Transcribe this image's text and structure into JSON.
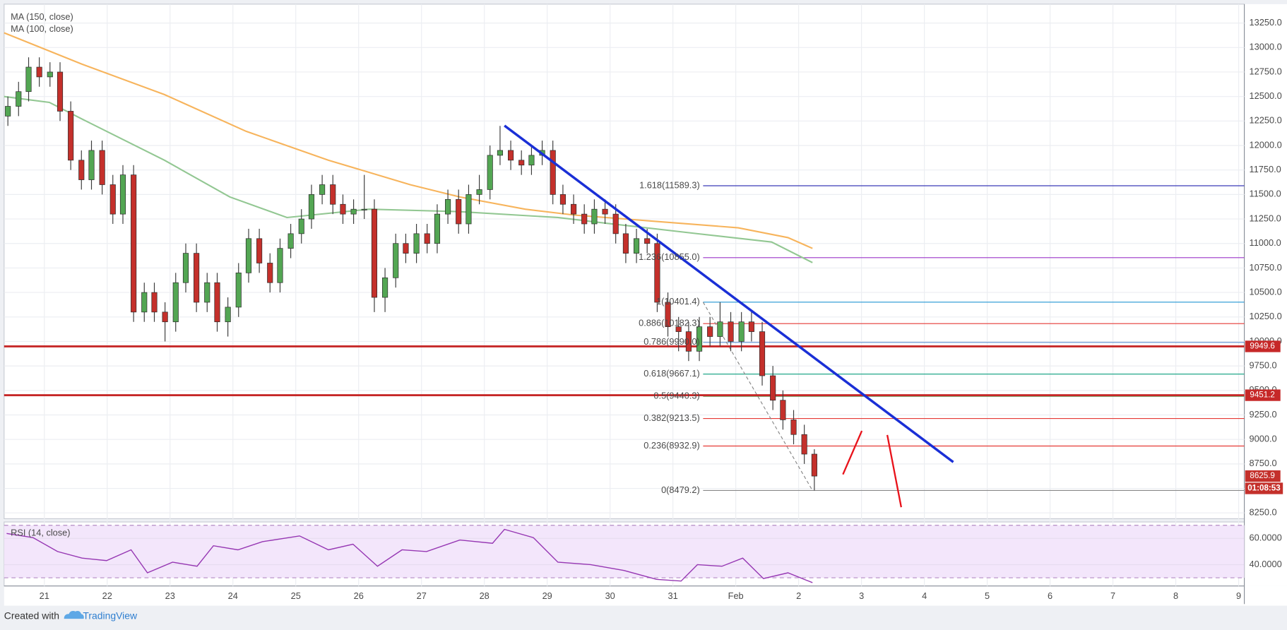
{
  "chart_data": [
    {
      "type": "candlestick",
      "legend": [
        "MA (150, close)",
        "MA (100, close)"
      ],
      "xlim": [
        -0.64,
        19.09
      ],
      "xticks": [
        {
          "value": 0,
          "label": "21"
        },
        {
          "value": 1,
          "label": "22"
        },
        {
          "value": 2,
          "label": "23"
        },
        {
          "value": 3,
          "label": "24"
        },
        {
          "value": 4,
          "label": "25"
        },
        {
          "value": 5,
          "label": "26"
        },
        {
          "value": 6,
          "label": "27"
        },
        {
          "value": 7,
          "label": "28"
        },
        {
          "value": 8,
          "label": "29"
        },
        {
          "value": 9,
          "label": "30"
        },
        {
          "value": 10,
          "label": "31"
        },
        {
          "value": 11,
          "label": "Feb"
        },
        {
          "value": 12,
          "label": "2"
        },
        {
          "value": 13,
          "label": "3"
        },
        {
          "value": 14,
          "label": "4"
        },
        {
          "value": 15,
          "label": "5"
        },
        {
          "value": 16,
          "label": "6"
        },
        {
          "value": 17,
          "label": "7"
        },
        {
          "value": 18,
          "label": "8"
        },
        {
          "value": 19,
          "label": "9"
        }
      ],
      "ylim": [
        8191,
        13443
      ],
      "yticks": [
        {
          "value": 8250,
          "label": "8250.0"
        },
        {
          "value": 8500,
          "label": "8500.0"
        },
        {
          "value": 8750,
          "label": "8750.0"
        },
        {
          "value": 9000,
          "label": "9000.0"
        },
        {
          "value": 9250,
          "label": "9250.0"
        },
        {
          "value": 9500,
          "label": "9500.0"
        },
        {
          "value": 9750,
          "label": "9750.0"
        },
        {
          "value": 10000,
          "label": "10000.0"
        },
        {
          "value": 10250,
          "label": "10250.0"
        },
        {
          "value": 10500,
          "label": "10500.0"
        },
        {
          "value": 10750,
          "label": "10750.0"
        },
        {
          "value": 11000,
          "label": "11000.0"
        },
        {
          "value": 11250,
          "label": "11250.0"
        },
        {
          "value": 11500,
          "label": "11500.0"
        },
        {
          "value": 11750,
          "label": "11750.0"
        },
        {
          "value": 12000,
          "label": "12000.0"
        },
        {
          "value": 12250,
          "label": "12250.0"
        },
        {
          "value": 12500,
          "label": "12500.0"
        },
        {
          "value": 12750,
          "label": "12750.0"
        },
        {
          "value": 13000,
          "label": "13000.0"
        },
        {
          "value": 13250,
          "label": "13250.0"
        }
      ],
      "grid": true,
      "up_color": "#53a653",
      "down_color": "#c4302b",
      "x": [
        -0.58,
        -0.41,
        -0.25,
        -0.08,
        0.09,
        0.25,
        0.42,
        0.59,
        0.75,
        0.92,
        1.09,
        1.25,
        1.42,
        1.59,
        1.75,
        1.92,
        2.09,
        2.25,
        2.42,
        2.59,
        2.75,
        2.92,
        3.09,
        3.25,
        3.42,
        3.59,
        3.75,
        3.92,
        4.09,
        4.25,
        4.42,
        4.59,
        4.75,
        4.92,
        5.09,
        5.25,
        5.42,
        5.59,
        5.75,
        5.92,
        6.09,
        6.25,
        6.42,
        6.59,
        6.75,
        6.92,
        7.09,
        7.25,
        7.42,
        7.59,
        7.75,
        7.92,
        8.09,
        8.25,
        8.42,
        8.59,
        8.75,
        8.92,
        9.09,
        9.25,
        9.42,
        9.59,
        9.75,
        9.92,
        10.09,
        10.25,
        10.42,
        10.59,
        10.75,
        10.92,
        11.09,
        11.25,
        11.42,
        11.59,
        11.75,
        11.92,
        12.09,
        12.25
      ],
      "open": [
        12300,
        12400,
        12550,
        12800,
        12700,
        12750,
        12350,
        11850,
        11650,
        11950,
        11600,
        11300,
        11700,
        10300,
        10500,
        10300,
        10200,
        10600,
        10900,
        10400,
        10600,
        10200,
        10350,
        10700,
        11050,
        10800,
        10600,
        10950,
        11100,
        11250,
        11500,
        11600,
        11400,
        11300,
        11350,
        11350,
        10450,
        10650,
        11000,
        10900,
        11100,
        11000,
        11300,
        11450,
        11200,
        11500,
        11550,
        11900,
        11950,
        11850,
        11800,
        11900,
        11950,
        11500,
        11400,
        11300,
        11200,
        11350,
        11300,
        11100,
        10900,
        11050,
        11000,
        10400,
        10150,
        10100,
        9900,
        10150,
        10050,
        10200,
        10000,
        10200,
        10100,
        9650,
        9400,
        9200,
        9050,
        8850
      ],
      "high": [
        12500,
        12650,
        12900,
        12900,
        12850,
        12850,
        12450,
        11950,
        12050,
        12050,
        11700,
        11800,
        11800,
        10600,
        10600,
        10400,
        10700,
        11000,
        11000,
        10700,
        10700,
        10450,
        10800,
        11150,
        11150,
        10900,
        11050,
        11200,
        11350,
        11600,
        11700,
        11700,
        11500,
        11450,
        11700,
        11450,
        10750,
        11100,
        11100,
        11200,
        11200,
        11400,
        11550,
        11550,
        11600,
        11700,
        12000,
        12200,
        12050,
        11950,
        12000,
        12050,
        12050,
        11600,
        11500,
        11400,
        11450,
        11450,
        11400,
        11200,
        11150,
        11150,
        11100,
        10500,
        10250,
        10200,
        10250,
        10250,
        10400,
        10300,
        10300,
        10300,
        10200,
        9750,
        9500,
        9300,
        9150,
        8900
      ],
      "low": [
        12200,
        12300,
        12450,
        12600,
        12600,
        12250,
        11750,
        11550,
        11550,
        11500,
        11200,
        11200,
        10200,
        10200,
        10200,
        10000,
        10100,
        10500,
        10300,
        10300,
        10100,
        10050,
        10250,
        10600,
        10700,
        10500,
        10500,
        10850,
        11000,
        11150,
        11400,
        11300,
        11200,
        11200,
        11250,
        10300,
        10300,
        10550,
        10800,
        10800,
        10900,
        10900,
        11200,
        11100,
        11100,
        11400,
        11450,
        11800,
        11750,
        11700,
        11700,
        11800,
        11400,
        11300,
        11200,
        11100,
        11100,
        11200,
        11000,
        10800,
        10800,
        10900,
        10300,
        10050,
        9900,
        9800,
        9800,
        9950,
        9950,
        9900,
        9900,
        10000,
        9550,
        9300,
        9100,
        8950,
        8750,
        8479.2
      ],
      "close": [
        12400,
        12550,
        12800,
        12700,
        12750,
        12350,
        11850,
        11650,
        11950,
        11600,
        11300,
        11700,
        10300,
        10500,
        10300,
        10200,
        10600,
        10900,
        10400,
        10600,
        10200,
        10350,
        10700,
        11050,
        10800,
        10600,
        10950,
        11100,
        11250,
        11500,
        11600,
        11400,
        11300,
        11350,
        11350,
        10450,
        10650,
        11000,
        10900,
        11100,
        11000,
        11300,
        11450,
        11200,
        11500,
        11550,
        11900,
        11950,
        11850,
        11800,
        11900,
        11950,
        11500,
        11400,
        11300,
        11200,
        11350,
        11300,
        11100,
        10900,
        11050,
        11000,
        10400,
        10150,
        10100,
        9900,
        10150,
        10050,
        10200,
        10000,
        10200,
        10100,
        9650,
        9400,
        9200,
        9050,
        8850,
        8625.9
      ],
      "ma": [
        {
          "color": "#f7b45c",
          "x": [
            -0.64,
            0.6,
            1.91,
            3.21,
            4.52,
            5.82,
            6.61,
            7.65,
            8.43,
            9.74,
            11.04,
            11.83,
            12.22
          ],
          "values": [
            13150,
            12830,
            12520,
            12145,
            11850,
            11600,
            11475,
            11350,
            11290,
            11225,
            11160,
            11060,
            10950
          ]
        },
        {
          "color": "#92c792",
          "x": [
            -0.64,
            0.08,
            0.6,
            1.91,
            2.95,
            3.86,
            5.17,
            6.61,
            8.17,
            8.96,
            10.39,
            11.57,
            12.22
          ],
          "values": [
            12500,
            12440,
            12270,
            11850,
            11475,
            11265,
            11350,
            11325,
            11265,
            11205,
            11100,
            11015,
            10805
          ]
        }
      ],
      "trendline": {
        "color": "#1a2fd6",
        "x": [
          7.32,
          14.46
        ],
        "values": [
          12203,
          8769
        ]
      },
      "levels": {
        "color": "#c62828",
        "values": [
          9949.6,
          9451.2
        ]
      },
      "fib": {
        "anchor_x": [
          10.48,
          12.22
        ],
        "levels": [
          {
            "label": "1.618(11589.3)",
            "value": 11589.3,
            "color": "#3a3ab8"
          },
          {
            "label": "1.236(10855.0)",
            "value": 10855.0,
            "color": "#9c36c9"
          },
          {
            "label": "1(10401.4)",
            "value": 10401.4,
            "color": "#2196d3"
          },
          {
            "label": "0.886(10182.3)",
            "value": 10182.3,
            "color": "#e53935"
          },
          {
            "label": "0.786(9990.0)",
            "value": 9990.0,
            "color": "#5b8fd0"
          },
          {
            "label": "0.618(9667.1)",
            "value": 9667.1,
            "color": "#22a88a"
          },
          {
            "label": "0.5(9440.3)",
            "value": 9440.3,
            "color": "#3e8e3e"
          },
          {
            "label": "0.382(9213.5)",
            "value": 9213.5,
            "color": "#e53935"
          },
          {
            "label": "0.236(8932.9)",
            "value": 8932.9,
            "color": "#e53935"
          },
          {
            "label": "0(8479.2)",
            "value": 8479.2,
            "color": "#888888"
          }
        ]
      },
      "last_price": 8625.9,
      "countdown": "01:08:53"
    },
    {
      "type": "line",
      "title": "RSI (14, close)",
      "color": "#9637b3",
      "xlim": [
        -0.64,
        19.09
      ],
      "ylim": [
        23.75,
        71.9
      ],
      "yticks": [
        {
          "value": 40,
          "label": "40.0000"
        },
        {
          "value": 60,
          "label": "60.0000"
        }
      ],
      "bands": [
        30,
        70
      ],
      "x": [
        -0.6,
        -0.18,
        0.21,
        0.6,
        0.99,
        1.38,
        1.64,
        2.04,
        2.43,
        2.69,
        3.08,
        3.47,
        4.06,
        4.52,
        4.91,
        5.3,
        5.69,
        6.08,
        6.61,
        7.13,
        7.32,
        7.78,
        8.17,
        8.69,
        9.22,
        9.74,
        10.13,
        10.39,
        10.78,
        11.11,
        11.44,
        11.83,
        12.22
      ],
      "values": [
        63.8,
        60.6,
        50,
        45,
        43.1,
        51.3,
        33.8,
        41.9,
        38.8,
        54.4,
        51.3,
        57.5,
        61.9,
        51.3,
        55.6,
        38.8,
        51.3,
        50,
        58.8,
        56.3,
        66.9,
        60.6,
        41.9,
        40,
        35.6,
        28.8,
        27.5,
        40,
        38.8,
        45,
        29.4,
        33.8,
        26.3
      ]
    }
  ],
  "footer": {
    "text": "Created with",
    "brand": "TradingView"
  }
}
